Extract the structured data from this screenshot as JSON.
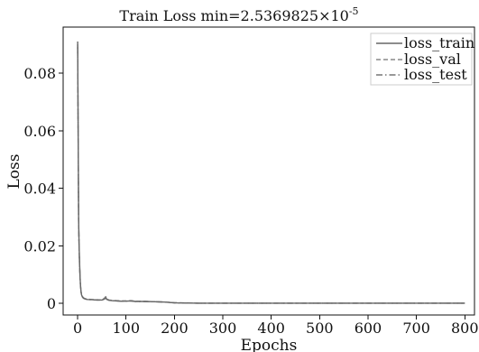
{
  "chart_data": {
    "type": "line",
    "title_main": "Train Loss min=2.5369825×10",
    "title_exponent": "-5",
    "xlabel": "Epochs",
    "ylabel": "Loss",
    "xlim": [
      -30,
      820
    ],
    "ylim": [
      -0.004,
      0.096
    ],
    "xticks": [
      0,
      100,
      200,
      300,
      400,
      500,
      600,
      700,
      800
    ],
    "xtick_labels": [
      "0",
      "100",
      "200",
      "300",
      "400",
      "500",
      "600",
      "700",
      "800"
    ],
    "yticks": [
      0,
      0.02,
      0.04,
      0.06,
      0.08
    ],
    "ytick_labels": [
      "0",
      "0.02",
      "0.04",
      "0.06",
      "0.08"
    ],
    "grid": false,
    "legend_position": "top-right",
    "series": [
      {
        "name": "loss_train",
        "color": "#666666",
        "dash": "solid",
        "x": [
          0,
          1,
          2,
          3,
          4,
          5,
          6,
          7,
          8,
          10,
          12,
          15,
          20,
          30,
          40,
          50,
          55,
          58,
          60,
          65,
          70,
          80,
          90,
          100,
          110,
          120,
          140,
          160,
          180,
          200,
          250,
          300,
          400,
          500,
          600,
          700,
          800
        ],
        "y": [
          0.091,
          0.06,
          0.029,
          0.02,
          0.014,
          0.009,
          0.006,
          0.004,
          0.003,
          0.0022,
          0.0018,
          0.0016,
          0.0014,
          0.0013,
          0.0012,
          0.0012,
          0.0015,
          0.002,
          0.0014,
          0.0011,
          0.001,
          0.0009,
          0.0008,
          0.0008,
          0.0009,
          0.0007,
          0.0007,
          0.0006,
          0.0005,
          0.0002,
          0.0001,
          0.0001,
          0.0001,
          0.0001,
          0.0001,
          0.0001,
          0.0001
        ]
      },
      {
        "name": "loss_val",
        "color": "#888888",
        "dash": "dashed",
        "x": [
          0,
          1,
          2,
          3,
          4,
          5,
          6,
          7,
          8,
          10,
          12,
          15,
          20,
          30,
          40,
          50,
          55,
          58,
          60,
          65,
          70,
          80,
          90,
          100,
          110,
          120,
          140,
          160,
          180,
          200,
          250,
          300,
          400,
          500,
          600,
          700,
          800
        ],
        "y": [
          0.09,
          0.058,
          0.028,
          0.019,
          0.013,
          0.0085,
          0.0058,
          0.0042,
          0.0031,
          0.0024,
          0.002,
          0.0017,
          0.0015,
          0.0014,
          0.0013,
          0.0012,
          0.0018,
          0.0024,
          0.0016,
          0.0012,
          0.0011,
          0.001,
          0.0009,
          0.0009,
          0.001,
          0.0008,
          0.0007,
          0.0006,
          0.0005,
          0.0003,
          0.0001,
          0.0001,
          0.0001,
          0.0001,
          0.0001,
          0.0001,
          0.0001
        ]
      },
      {
        "name": "loss_test",
        "color": "#777777",
        "dash": "dashdot",
        "x": [
          0,
          1,
          2,
          3,
          4,
          5,
          6,
          7,
          8,
          10,
          12,
          15,
          20,
          30,
          40,
          50,
          55,
          58,
          60,
          65,
          70,
          80,
          90,
          100,
          110,
          120,
          140,
          160,
          180,
          200,
          250,
          300,
          400,
          500,
          600,
          700,
          800
        ],
        "y": [
          0.089,
          0.059,
          0.029,
          0.0195,
          0.0135,
          0.0088,
          0.006,
          0.0041,
          0.003,
          0.0023,
          0.0019,
          0.0016,
          0.0014,
          0.0013,
          0.0012,
          0.0012,
          0.0016,
          0.0022,
          0.0015,
          0.0011,
          0.001,
          0.0009,
          0.0008,
          0.0008,
          0.0009,
          0.0007,
          0.0007,
          0.0006,
          0.0005,
          0.0002,
          0.0001,
          0.0001,
          0.0001,
          0.0001,
          0.0001,
          0.0001,
          0.0001
        ]
      }
    ]
  }
}
